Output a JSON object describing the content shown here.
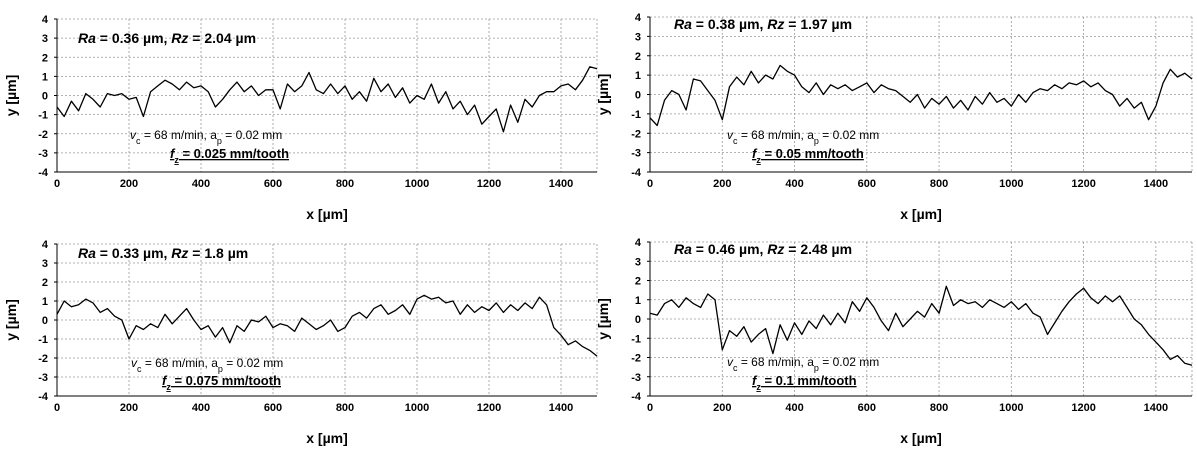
{
  "chart_data": [
    {
      "type": "line",
      "title": "",
      "xlabel": "x [µm]",
      "ylabel": "y [µm]",
      "xlim": [
        0,
        1500
      ],
      "ylim": [
        -4,
        4
      ],
      "x_ticks": [
        0,
        200,
        400,
        600,
        800,
        1000,
        1200,
        1400
      ],
      "y_ticks": [
        -4,
        -3,
        -2,
        -1,
        0,
        1,
        2,
        3,
        4
      ],
      "grid": true,
      "legend": "none",
      "roughness": {
        "ra_label": "Ra",
        "ra_text": " = 0.36 µm,  ",
        "rz_label": "Rz",
        "rz_text": " =  2.04 µm"
      },
      "conditions": "v_c = 68 m/min, a_p = 0.02 mm",
      "feed": "f_z = 0.025 mm/tooth",
      "series": [
        {
          "x": [
            0,
            20,
            40,
            60,
            80,
            100,
            120,
            140,
            160,
            180,
            200,
            220,
            240,
            260,
            280,
            300,
            320,
            340,
            360,
            380,
            400,
            420,
            440,
            460,
            480,
            500,
            520,
            540,
            560,
            580,
            600,
            620,
            640,
            660,
            680,
            700,
            720,
            740,
            760,
            780,
            800,
            820,
            840,
            860,
            880,
            900,
            920,
            940,
            960,
            980,
            1000,
            1020,
            1040,
            1060,
            1080,
            1100,
            1120,
            1140,
            1160,
            1180,
            1200,
            1220,
            1240,
            1260,
            1280,
            1300,
            1320,
            1340,
            1360,
            1380,
            1400,
            1420,
            1440,
            1460,
            1480,
            1500
          ],
          "y": [
            -0.6,
            -1.1,
            -0.3,
            -0.8,
            0.1,
            -0.2,
            -0.6,
            0.1,
            0.0,
            0.1,
            -0.2,
            -0.1,
            -1.1,
            0.2,
            0.5,
            0.8,
            0.6,
            0.3,
            0.7,
            0.4,
            0.5,
            0.2,
            -0.6,
            -0.2,
            0.3,
            0.7,
            0.2,
            0.5,
            0.0,
            0.3,
            0.3,
            -0.7,
            0.6,
            0.2,
            0.5,
            1.2,
            0.3,
            0.1,
            0.6,
            0.1,
            0.5,
            -0.2,
            0.2,
            -0.3,
            0.9,
            0.2,
            0.6,
            -0.1,
            0.4,
            -0.4,
            0.0,
            -0.2,
            0.6,
            -0.4,
            0.2,
            -0.7,
            -0.3,
            -1.0,
            -0.5,
            -1.5,
            -1.1,
            -0.7,
            -1.9,
            -0.5,
            -1.4,
            -0.2,
            -0.6,
            0.0,
            0.2,
            0.2,
            0.5,
            0.6,
            0.3,
            0.8,
            1.5,
            1.4
          ]
        }
      ]
    },
    {
      "type": "line",
      "title": "",
      "xlabel": "x [µm]",
      "ylabel": "y [µm]",
      "xlim": [
        0,
        1500
      ],
      "ylim": [
        -4,
        4
      ],
      "x_ticks": [
        0,
        200,
        400,
        600,
        800,
        1000,
        1200,
        1400
      ],
      "y_ticks": [
        -4,
        -3,
        -2,
        -1,
        0,
        1,
        2,
        3,
        4
      ],
      "grid": true,
      "legend": "none",
      "roughness": {
        "ra_label": "Ra",
        "ra_text": " = 0.38 µm,  ",
        "rz_label": "Rz",
        "rz_text": " =  1.97 µm"
      },
      "conditions": "v_c = 68 m/min, a_p = 0.02 mm",
      "feed": "f_z = 0.05 mm/tooth",
      "series": [
        {
          "x": [
            0,
            20,
            40,
            60,
            80,
            100,
            120,
            140,
            160,
            180,
            200,
            220,
            240,
            260,
            280,
            300,
            320,
            340,
            360,
            380,
            400,
            420,
            440,
            460,
            480,
            500,
            520,
            540,
            560,
            580,
            600,
            620,
            640,
            660,
            680,
            700,
            720,
            740,
            760,
            780,
            800,
            820,
            840,
            860,
            880,
            900,
            920,
            940,
            960,
            980,
            1000,
            1020,
            1040,
            1060,
            1080,
            1100,
            1120,
            1140,
            1160,
            1180,
            1200,
            1220,
            1240,
            1260,
            1280,
            1300,
            1320,
            1340,
            1360,
            1380,
            1400,
            1420,
            1440,
            1460,
            1480,
            1500
          ],
          "y": [
            -1.2,
            -1.6,
            -0.3,
            0.2,
            0.0,
            -0.8,
            0.8,
            0.7,
            0.2,
            -0.3,
            -1.3,
            0.4,
            0.9,
            0.5,
            1.2,
            0.6,
            1.0,
            0.8,
            1.5,
            1.2,
            1.0,
            0.4,
            0.1,
            0.6,
            0.0,
            0.5,
            0.3,
            0.5,
            0.2,
            0.4,
            0.6,
            0.1,
            0.5,
            0.3,
            0.2,
            -0.1,
            -0.4,
            0.0,
            -0.7,
            -0.2,
            -0.5,
            -0.1,
            -0.7,
            -0.3,
            -0.8,
            -0.1,
            -0.5,
            0.1,
            -0.4,
            -0.2,
            -0.6,
            0.0,
            -0.4,
            0.1,
            0.3,
            0.2,
            0.5,
            0.3,
            0.6,
            0.5,
            0.7,
            0.4,
            0.6,
            0.2,
            0.0,
            -0.6,
            -0.2,
            -0.7,
            -0.4,
            -1.3,
            -0.6,
            0.6,
            1.3,
            0.9,
            1.1,
            0.8
          ]
        }
      ]
    },
    {
      "type": "line",
      "title": "",
      "xlabel": "x [µm]",
      "ylabel": "y [µm]",
      "xlim": [
        0,
        1500
      ],
      "ylim": [
        -4,
        4
      ],
      "x_ticks": [
        0,
        200,
        400,
        600,
        800,
        1000,
        1200,
        1400
      ],
      "y_ticks": [
        -4,
        -3,
        -2,
        -1,
        0,
        1,
        2,
        3,
        4
      ],
      "grid": true,
      "legend": "none",
      "roughness": {
        "ra_label": "Ra",
        "ra_text": " = 0.33 µm,  ",
        "rz_label": "Rz",
        "rz_text": " =  1.8 µm"
      },
      "conditions": "v_c = 68 m/min, a_p = 0.02 mm",
      "feed": "f_z = 0.075 mm/tooth",
      "series": [
        {
          "x": [
            0,
            20,
            40,
            60,
            80,
            100,
            120,
            140,
            160,
            180,
            200,
            220,
            240,
            260,
            280,
            300,
            320,
            340,
            360,
            380,
            400,
            420,
            440,
            460,
            480,
            500,
            520,
            540,
            560,
            580,
            600,
            620,
            640,
            660,
            680,
            700,
            720,
            740,
            760,
            780,
            800,
            820,
            840,
            860,
            880,
            900,
            920,
            940,
            960,
            980,
            1000,
            1020,
            1040,
            1060,
            1080,
            1100,
            1120,
            1140,
            1160,
            1180,
            1200,
            1220,
            1240,
            1260,
            1280,
            1300,
            1320,
            1340,
            1360,
            1380,
            1400,
            1420,
            1440,
            1460,
            1480,
            1500
          ],
          "y": [
            0.3,
            1.0,
            0.7,
            0.8,
            1.1,
            0.9,
            0.4,
            0.6,
            0.2,
            0.0,
            -1.0,
            -0.3,
            -0.5,
            -0.2,
            -0.4,
            0.3,
            -0.2,
            0.2,
            0.6,
            0.0,
            -0.5,
            -0.3,
            -0.9,
            -0.4,
            -1.2,
            -0.3,
            -0.6,
            0.0,
            -0.1,
            0.2,
            -0.4,
            -0.2,
            -0.3,
            -0.6,
            0.1,
            -0.2,
            -0.5,
            -0.3,
            0.0,
            -0.6,
            -0.4,
            0.2,
            0.4,
            0.1,
            0.6,
            0.8,
            0.3,
            0.5,
            0.8,
            0.3,
            1.1,
            1.3,
            1.1,
            1.2,
            0.9,
            1.0,
            0.3,
            0.8,
            0.4,
            0.7,
            0.5,
            0.9,
            0.4,
            0.8,
            0.5,
            0.9,
            0.6,
            1.2,
            0.8,
            -0.4,
            -0.8,
            -1.3,
            -1.1,
            -1.4,
            -1.6,
            -1.9
          ]
        }
      ]
    },
    {
      "type": "line",
      "title": "",
      "xlabel": "x [µm]",
      "ylabel": "y [µm]",
      "xlim": [
        0,
        1500
      ],
      "ylim": [
        -4,
        4
      ],
      "x_ticks": [
        0,
        200,
        400,
        600,
        800,
        1000,
        1200,
        1400
      ],
      "y_ticks": [
        -4,
        -3,
        -2,
        -1,
        0,
        1,
        2,
        3,
        4
      ],
      "grid": true,
      "legend": "none",
      "roughness": {
        "ra_label": "Ra",
        "ra_text": " = 0.46 µm,  ",
        "rz_label": "Rz",
        "rz_text": " =  2.48 µm"
      },
      "conditions": "v_c = 68 m/min, a_p = 0.02 mm",
      "feed": "f_z = 0.1 mm/tooth",
      "series": [
        {
          "x": [
            0,
            20,
            40,
            60,
            80,
            100,
            120,
            140,
            160,
            180,
            200,
            220,
            240,
            260,
            280,
            300,
            320,
            340,
            360,
            380,
            400,
            420,
            440,
            460,
            480,
            500,
            520,
            540,
            560,
            580,
            600,
            620,
            640,
            660,
            680,
            700,
            720,
            740,
            760,
            780,
            800,
            820,
            840,
            860,
            880,
            900,
            920,
            940,
            960,
            980,
            1000,
            1020,
            1040,
            1060,
            1080,
            1100,
            1120,
            1140,
            1160,
            1180,
            1200,
            1220,
            1240,
            1260,
            1280,
            1300,
            1320,
            1340,
            1360,
            1380,
            1400,
            1420,
            1440,
            1460,
            1480,
            1500
          ],
          "y": [
            0.3,
            0.2,
            0.8,
            1.0,
            0.6,
            1.1,
            0.8,
            0.6,
            1.3,
            1.0,
            -1.6,
            -0.6,
            -0.9,
            -0.4,
            -1.2,
            -0.8,
            -0.5,
            -1.8,
            -0.3,
            -1.1,
            -0.2,
            -0.8,
            -0.1,
            -0.5,
            0.2,
            -0.3,
            0.3,
            -0.2,
            0.9,
            0.4,
            1.1,
            0.6,
            -0.1,
            -0.6,
            0.3,
            -0.4,
            0.0,
            0.4,
            0.1,
            0.8,
            0.3,
            1.7,
            0.7,
            1.0,
            0.8,
            0.9,
            0.6,
            1.0,
            0.8,
            0.6,
            0.9,
            0.5,
            0.8,
            0.3,
            0.1,
            -0.8,
            -0.2,
            0.4,
            0.9,
            1.3,
            1.6,
            1.1,
            0.8,
            1.2,
            0.9,
            1.2,
            0.6,
            0.0,
            -0.3,
            -0.8,
            -1.2,
            -1.6,
            -2.1,
            -1.9,
            -2.3,
            -2.4
          ]
        }
      ]
    }
  ]
}
